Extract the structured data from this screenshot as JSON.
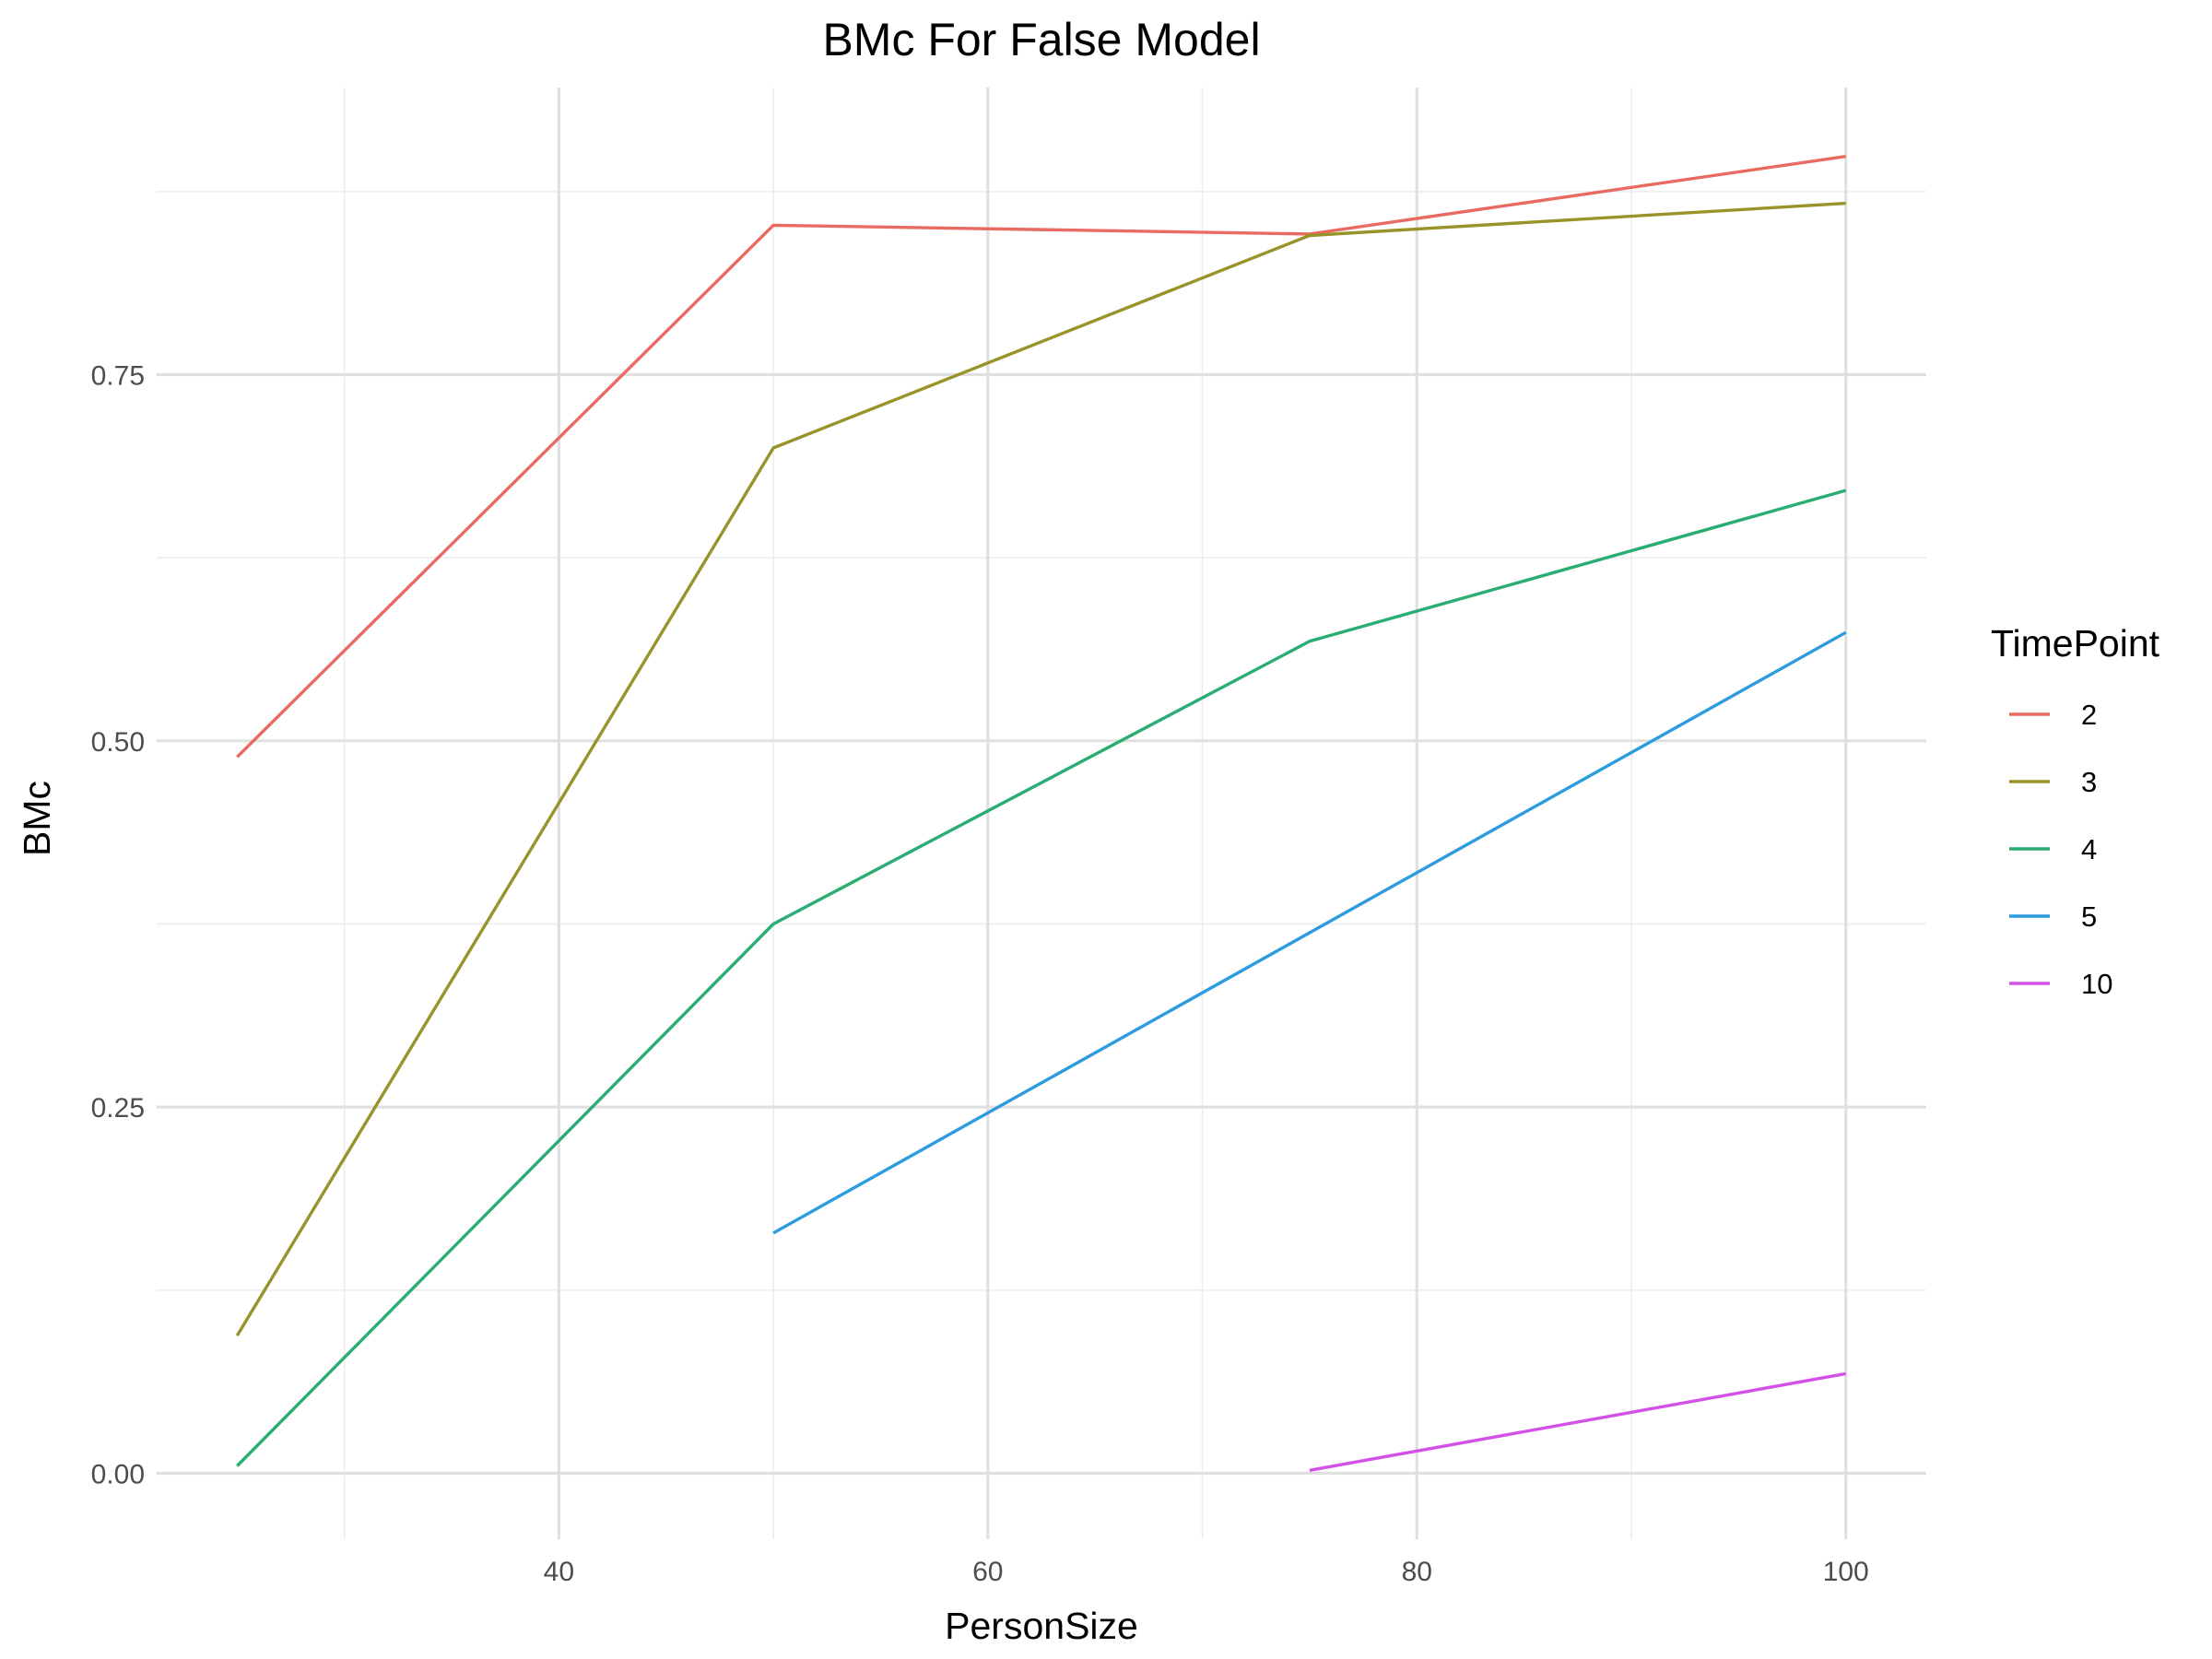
{
  "chart_data": {
    "type": "line",
    "title": "BMc For False Model",
    "xlabel": "PersonSize",
    "ylabel": "BMc",
    "xlim": [
      21.25,
      103.75
    ],
    "ylim": [
      -0.045,
      0.946
    ],
    "x_ticks": [
      40,
      60,
      80,
      100
    ],
    "x_tick_labels": [
      "40",
      "60",
      "80",
      "100"
    ],
    "x_minor_ticks": [
      30,
      50,
      70,
      90
    ],
    "y_ticks": [
      0.0,
      0.25,
      0.5,
      0.75
    ],
    "y_tick_labels": [
      "0.00",
      "0.25",
      "0.50",
      "0.75"
    ],
    "y_minor_ticks": [
      0.125,
      0.375,
      0.625,
      0.875
    ],
    "grid": true,
    "legend": {
      "title": "TimePoint",
      "position": "right"
    },
    "series": [
      {
        "name": "2",
        "color": "#E86A60",
        "x": [
          25,
          50,
          75,
          100
        ],
        "y": [
          0.489,
          0.852,
          0.846,
          0.899
        ]
      },
      {
        "name": "3",
        "color": "#98942A",
        "x": [
          25,
          50,
          75,
          100
        ],
        "y": [
          0.094,
          0.7,
          0.845,
          0.867
        ]
      },
      {
        "name": "4",
        "color": "#29AD72",
        "x": [
          25,
          50,
          75,
          100
        ],
        "y": [
          0.005,
          0.375,
          0.568,
          0.671
        ]
      },
      {
        "name": "5",
        "color": "#2D9BE0",
        "x": [
          50,
          100
        ],
        "y": [
          0.164,
          0.574
        ]
      },
      {
        "name": "10",
        "color": "#D451E8",
        "x": [
          75,
          100
        ],
        "y": [
          0.002,
          0.068
        ]
      }
    ]
  }
}
